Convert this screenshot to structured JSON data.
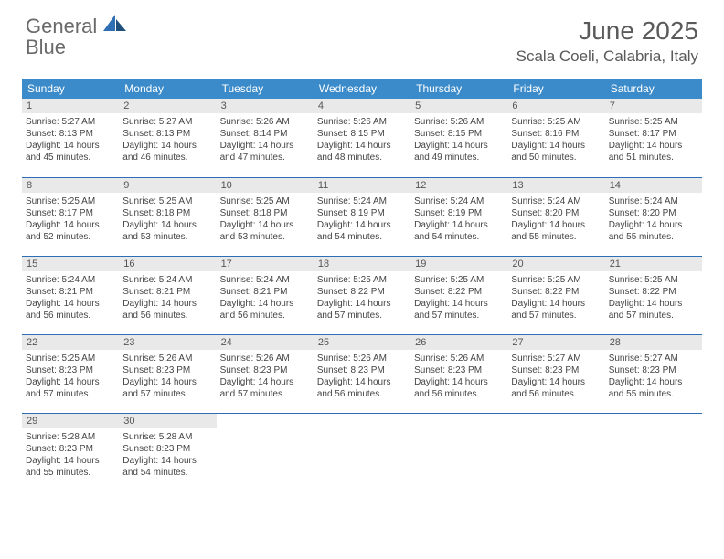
{
  "logo": {
    "word1": "General",
    "word2": "Blue"
  },
  "title": "June 2025",
  "location": "Scala Coeli, Calabria, Italy",
  "colors": {
    "header_bg": "#3b8bca",
    "rule": "#2e6fb4",
    "daynum_bg": "#e9e9e9",
    "text": "#444444",
    "title_text": "#5a5a5a"
  },
  "weekdays": [
    "Sunday",
    "Monday",
    "Tuesday",
    "Wednesday",
    "Thursday",
    "Friday",
    "Saturday"
  ],
  "weeks": [
    [
      {
        "n": "1",
        "sr": "5:27 AM",
        "ss": "8:13 PM",
        "dl": "14 hours and 45 minutes."
      },
      {
        "n": "2",
        "sr": "5:27 AM",
        "ss": "8:13 PM",
        "dl": "14 hours and 46 minutes."
      },
      {
        "n": "3",
        "sr": "5:26 AM",
        "ss": "8:14 PM",
        "dl": "14 hours and 47 minutes."
      },
      {
        "n": "4",
        "sr": "5:26 AM",
        "ss": "8:15 PM",
        "dl": "14 hours and 48 minutes."
      },
      {
        "n": "5",
        "sr": "5:26 AM",
        "ss": "8:15 PM",
        "dl": "14 hours and 49 minutes."
      },
      {
        "n": "6",
        "sr": "5:25 AM",
        "ss": "8:16 PM",
        "dl": "14 hours and 50 minutes."
      },
      {
        "n": "7",
        "sr": "5:25 AM",
        "ss": "8:17 PM",
        "dl": "14 hours and 51 minutes."
      }
    ],
    [
      {
        "n": "8",
        "sr": "5:25 AM",
        "ss": "8:17 PM",
        "dl": "14 hours and 52 minutes."
      },
      {
        "n": "9",
        "sr": "5:25 AM",
        "ss": "8:18 PM",
        "dl": "14 hours and 53 minutes."
      },
      {
        "n": "10",
        "sr": "5:25 AM",
        "ss": "8:18 PM",
        "dl": "14 hours and 53 minutes."
      },
      {
        "n": "11",
        "sr": "5:24 AM",
        "ss": "8:19 PM",
        "dl": "14 hours and 54 minutes."
      },
      {
        "n": "12",
        "sr": "5:24 AM",
        "ss": "8:19 PM",
        "dl": "14 hours and 54 minutes."
      },
      {
        "n": "13",
        "sr": "5:24 AM",
        "ss": "8:20 PM",
        "dl": "14 hours and 55 minutes."
      },
      {
        "n": "14",
        "sr": "5:24 AM",
        "ss": "8:20 PM",
        "dl": "14 hours and 55 minutes."
      }
    ],
    [
      {
        "n": "15",
        "sr": "5:24 AM",
        "ss": "8:21 PM",
        "dl": "14 hours and 56 minutes."
      },
      {
        "n": "16",
        "sr": "5:24 AM",
        "ss": "8:21 PM",
        "dl": "14 hours and 56 minutes."
      },
      {
        "n": "17",
        "sr": "5:24 AM",
        "ss": "8:21 PM",
        "dl": "14 hours and 56 minutes."
      },
      {
        "n": "18",
        "sr": "5:25 AM",
        "ss": "8:22 PM",
        "dl": "14 hours and 57 minutes."
      },
      {
        "n": "19",
        "sr": "5:25 AM",
        "ss": "8:22 PM",
        "dl": "14 hours and 57 minutes."
      },
      {
        "n": "20",
        "sr": "5:25 AM",
        "ss": "8:22 PM",
        "dl": "14 hours and 57 minutes."
      },
      {
        "n": "21",
        "sr": "5:25 AM",
        "ss": "8:22 PM",
        "dl": "14 hours and 57 minutes."
      }
    ],
    [
      {
        "n": "22",
        "sr": "5:25 AM",
        "ss": "8:23 PM",
        "dl": "14 hours and 57 minutes."
      },
      {
        "n": "23",
        "sr": "5:26 AM",
        "ss": "8:23 PM",
        "dl": "14 hours and 57 minutes."
      },
      {
        "n": "24",
        "sr": "5:26 AM",
        "ss": "8:23 PM",
        "dl": "14 hours and 57 minutes."
      },
      {
        "n": "25",
        "sr": "5:26 AM",
        "ss": "8:23 PM",
        "dl": "14 hours and 56 minutes."
      },
      {
        "n": "26",
        "sr": "5:26 AM",
        "ss": "8:23 PM",
        "dl": "14 hours and 56 minutes."
      },
      {
        "n": "27",
        "sr": "5:27 AM",
        "ss": "8:23 PM",
        "dl": "14 hours and 56 minutes."
      },
      {
        "n": "28",
        "sr": "5:27 AM",
        "ss": "8:23 PM",
        "dl": "14 hours and 55 minutes."
      }
    ],
    [
      {
        "n": "29",
        "sr": "5:28 AM",
        "ss": "8:23 PM",
        "dl": "14 hours and 55 minutes."
      },
      {
        "n": "30",
        "sr": "5:28 AM",
        "ss": "8:23 PM",
        "dl": "14 hours and 54 minutes."
      },
      null,
      null,
      null,
      null,
      null
    ]
  ],
  "labels": {
    "sunrise": "Sunrise: ",
    "sunset": "Sunset: ",
    "daylight": "Daylight: "
  }
}
